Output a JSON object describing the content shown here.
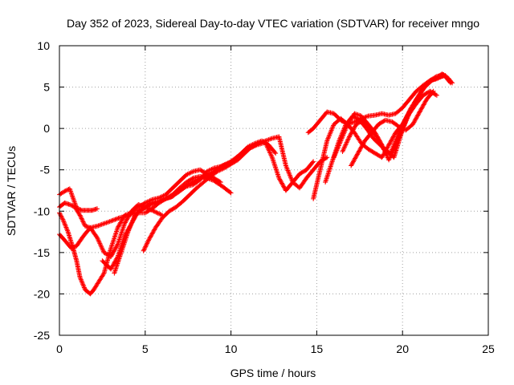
{
  "chart_data": {
    "type": "scatter",
    "title": "Day 352 of 2023, Sidereal Day-to-day VTEC variation (SDTVAR) for receiver mngo",
    "xlabel": "GPS time / hours",
    "ylabel": "SDTVAR / TECUs",
    "xlim": [
      0,
      25
    ],
    "ylim": [
      -25,
      10
    ],
    "xticks": [
      0,
      5,
      10,
      15,
      20,
      25
    ],
    "yticks": [
      -25,
      -20,
      -15,
      -10,
      -5,
      0,
      5,
      10
    ],
    "grid": true,
    "marker": "+",
    "color": "#ff0000",
    "series": [
      {
        "x": [
          0.0,
          0.3,
          0.6,
          1.0,
          1.3,
          1.6,
          1.9,
          2.2
        ],
        "y": [
          -8.0,
          -7.6,
          -7.3,
          -9.6,
          -9.9,
          -9.9,
          -9.9,
          -9.7
        ]
      },
      {
        "x": [
          0.0,
          0.2,
          0.5,
          0.8,
          1.0,
          1.2,
          1.5,
          1.8,
          2.0,
          2.3,
          2.6,
          3.0,
          3.4,
          3.8,
          4.2,
          4.6,
          5.0,
          5.4,
          5.8,
          6.2,
          6.6,
          7.0,
          7.4,
          7.8,
          8.2,
          8.6,
          9.0,
          9.4
        ],
        "y": [
          -10.2,
          -11.0,
          -12.5,
          -14.5,
          -16.0,
          -18.0,
          -19.5,
          -20.0,
          -19.5,
          -18.5,
          -17.5,
          -14.5,
          -12.0,
          -10.5,
          -10.2,
          -9.5,
          -9.0,
          -8.6,
          -8.4,
          -8.0,
          -7.2,
          -6.4,
          -5.6,
          -5.2,
          -5.0,
          -5.5,
          -6.0,
          -6.5
        ]
      },
      {
        "x": [
          0.0,
          0.3,
          0.7,
          1.0,
          1.4,
          1.8,
          2.2,
          2.6,
          3.0,
          3.5,
          4.0,
          4.5,
          5.0,
          5.4,
          5.8,
          6.2,
          6.6,
          7.0,
          7.4,
          7.8,
          8.2,
          8.6,
          9.0,
          9.5,
          10.0
        ],
        "y": [
          -12.8,
          -13.5,
          -14.5,
          -14.2,
          -13.0,
          -12.0,
          -11.8,
          -11.5,
          -11.2,
          -10.8,
          -10.5,
          -10.2,
          -10.2,
          -9.7,
          -9.0,
          -8.5,
          -8.0,
          -7.2,
          -6.5,
          -6.0,
          -5.8,
          -6.0,
          -6.3,
          -7.0,
          -7.8
        ]
      },
      {
        "x": [
          0.0,
          0.3,
          0.6,
          0.9,
          1.2,
          1.5,
          1.8,
          2.2,
          2.6,
          3.0,
          3.4,
          3.8,
          4.2,
          4.6,
          5.0,
          5.5,
          6.0
        ],
        "y": [
          -9.5,
          -9.0,
          -9.2,
          -9.5,
          -10.5,
          -11.8,
          -12.0,
          -13.2,
          -15.0,
          -15.5,
          -14.0,
          -11.5,
          -10.0,
          -9.2,
          -9.5,
          -10.0,
          -10.5
        ]
      },
      {
        "x": [
          2.5,
          3.0,
          3.4,
          3.8,
          4.2,
          4.6,
          5.0,
          5.4,
          5.8,
          6.2,
          6.6,
          7.0,
          7.4,
          7.8,
          8.2,
          8.6,
          9.0,
          9.4,
          9.8,
          10.2,
          10.6,
          11.0,
          11.4,
          11.8,
          12.2,
          12.6
        ],
        "y": [
          -16.0,
          -17.0,
          -15.5,
          -13.0,
          -11.5,
          -10.0,
          -9.5,
          -9.0,
          -8.8,
          -8.5,
          -8.2,
          -7.5,
          -7.0,
          -6.8,
          -6.2,
          -5.2,
          -4.8,
          -4.6,
          -4.3,
          -3.8,
          -3.0,
          -2.2,
          -1.8,
          -1.5,
          -2.0,
          -3.0
        ]
      },
      {
        "x": [
          3.2,
          3.6,
          4.0,
          4.4,
          4.8,
          5.2,
          5.6,
          6.0,
          6.5,
          7.0,
          7.5,
          8.0,
          8.5,
          9.0,
          9.5,
          10.0,
          10.5,
          11.0,
          11.5,
          12.0,
          12.4,
          12.8,
          13.2,
          13.6,
          14.0,
          14.4,
          14.8
        ],
        "y": [
          -17.5,
          -15.0,
          -12.5,
          -10.5,
          -9.8,
          -9.3,
          -9.0,
          -8.6,
          -8.3,
          -7.6,
          -6.8,
          -6.2,
          -5.8,
          -5.2,
          -4.5,
          -4.0,
          -3.2,
          -2.5,
          -2.0,
          -1.7,
          -3.5,
          -6.0,
          -7.5,
          -6.5,
          -5.5,
          -5.0,
          -4.0
        ]
      },
      {
        "x": [
          4.9,
          5.2,
          5.6,
          6.0,
          6.4,
          6.8,
          7.2,
          7.6,
          8.0,
          8.4,
          8.8,
          9.2,
          9.6,
          10.0,
          10.4,
          10.8,
          11.2,
          11.6,
          12.0,
          12.4,
          12.8,
          13.2,
          13.6,
          14.0,
          14.4,
          14.8,
          15.2,
          15.6
        ],
        "y": [
          -14.8,
          -13.5,
          -12.0,
          -10.8,
          -10.0,
          -9.5,
          -8.8,
          -8.0,
          -7.2,
          -6.5,
          -5.8,
          -5.2,
          -4.8,
          -4.3,
          -3.8,
          -3.0,
          -2.2,
          -1.8,
          -1.5,
          -1.2,
          -1.0,
          -4.5,
          -6.5,
          -7.2,
          -6.0,
          -5.0,
          -4.0,
          -3.5
        ]
      },
      {
        "x": [
          14.8,
          15.2,
          15.6,
          16.0,
          16.4,
          16.8,
          17.2,
          17.6,
          18.0,
          18.4,
          18.8,
          19.2,
          19.6,
          20.0,
          20.4,
          20.8,
          21.2,
          21.6,
          22.0,
          22.4,
          22.8
        ],
        "y": [
          -8.5,
          -5.0,
          -1.5,
          0.5,
          1.2,
          0.5,
          -0.5,
          -1.8,
          -2.5,
          -3.0,
          -3.5,
          -2.0,
          -0.5,
          0.5,
          2.0,
          3.5,
          4.8,
          5.8,
          6.3,
          6.5,
          5.5
        ]
      },
      {
        "x": [
          14.5,
          14.8,
          15.2,
          15.6,
          16.0,
          16.4,
          16.8,
          17.2,
          17.6,
          18.0,
          18.4,
          18.8,
          19.2,
          19.6,
          20.0,
          20.4,
          20.8,
          21.2,
          21.6,
          22.0,
          22.4
        ],
        "y": [
          -0.5,
          0.0,
          1.0,
          2.0,
          1.8,
          1.0,
          0.5,
          0.8,
          1.2,
          1.5,
          1.6,
          1.8,
          1.6,
          1.8,
          2.5,
          3.5,
          4.5,
          5.2,
          5.8,
          6.0,
          6.4
        ]
      },
      {
        "x": [
          15.5,
          15.9,
          16.3,
          16.7,
          17.1,
          17.5,
          17.9,
          18.3,
          18.7,
          19.1,
          19.5,
          19.9,
          20.3,
          20.7,
          21.1,
          21.5,
          21.9,
          22.3,
          22.7
        ],
        "y": [
          -6.5,
          -4.0,
          -1.5,
          0.5,
          1.5,
          1.0,
          0.0,
          -1.2,
          -2.0,
          -2.8,
          -3.5,
          -0.8,
          1.5,
          3.0,
          4.5,
          5.6,
          6.0,
          6.6,
          6.0
        ]
      },
      {
        "x": [
          16.0,
          16.4,
          16.8,
          17.2,
          17.6,
          18.0,
          18.4,
          18.8,
          19.2,
          19.6,
          20.0,
          20.4,
          20.8,
          21.2,
          21.6,
          22.0
        ],
        "y": [
          -3.5,
          -1.5,
          0.5,
          1.8,
          1.5,
          0.5,
          -0.5,
          -2.0,
          -3.8,
          -2.0,
          0.0,
          1.8,
          3.0,
          4.0,
          4.5,
          4.0
        ]
      },
      {
        "x": [
          16.5,
          16.9,
          17.3,
          17.7,
          18.1,
          18.5,
          18.9,
          19.3,
          19.7,
          20.1,
          20.5,
          20.9,
          21.3,
          21.7,
          22.1,
          22.5,
          22.9
        ],
        "y": [
          -2.8,
          -1.0,
          0.5,
          1.0,
          0.0,
          -1.0,
          -2.5,
          -3.0,
          -1.0,
          0.8,
          2.5,
          3.8,
          5.0,
          5.8,
          6.2,
          6.4,
          5.5
        ]
      },
      {
        "x": [
          17.0,
          17.4,
          17.8,
          18.2,
          18.6,
          19.0,
          19.4,
          19.8,
          20.2,
          20.6,
          21.0,
          21.4,
          21.8
        ],
        "y": [
          -4.5,
          -3.0,
          -1.5,
          -0.5,
          0.5,
          1.0,
          0.8,
          0.2,
          -0.2,
          0.5,
          2.0,
          3.5,
          4.5
        ]
      }
    ]
  }
}
